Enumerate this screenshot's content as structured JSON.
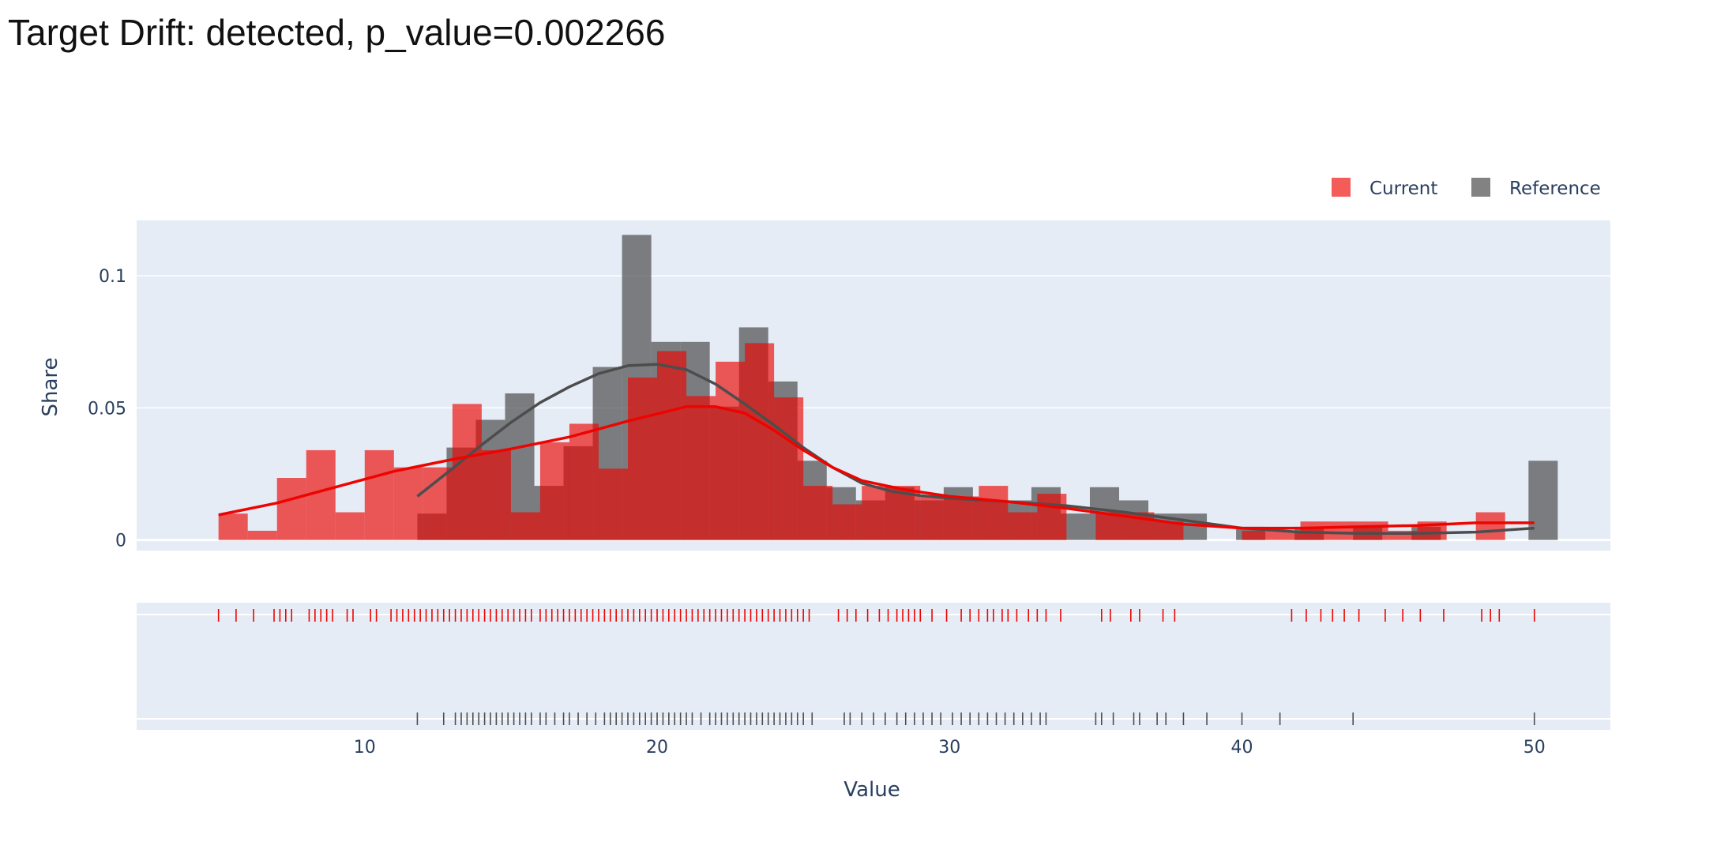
{
  "title": "Target Drift: detected, p_value=0.002266",
  "colors": {
    "current": "#ed0400",
    "reference": "#4d4d4d",
    "plot_bg": "#e5ecf6",
    "grid": "#ffffff",
    "text": "#2a3f5f"
  },
  "chart_data": {
    "type": "histogram",
    "xlabel": "Value",
    "ylabel": "Share",
    "xlim": [
      2.2,
      52.6
    ],
    "ylim": [
      -0.004,
      0.121
    ],
    "x_ticks": [
      10,
      20,
      30,
      40,
      50
    ],
    "y_ticks": [
      0,
      0.05,
      0.1
    ],
    "y_tick_labels": [
      "0",
      "0.05",
      "0.1"
    ],
    "legend": {
      "position": "top-right",
      "entries": [
        "Current",
        "Reference"
      ]
    },
    "series": [
      {
        "name": "Current",
        "bins": [
          [
            5.0,
            6.0,
            0.01
          ],
          [
            6.0,
            7.0,
            0.0035
          ],
          [
            7.0,
            8.0,
            0.0235
          ],
          [
            8.0,
            9.0,
            0.034
          ],
          [
            9.0,
            10.0,
            0.0105
          ],
          [
            10.0,
            11.0,
            0.034
          ],
          [
            11.0,
            12.0,
            0.0275
          ],
          [
            12.0,
            13.0,
            0.0275
          ],
          [
            13.0,
            14.0,
            0.0515
          ],
          [
            14.0,
            15.0,
            0.034
          ],
          [
            15.0,
            16.0,
            0.0105
          ],
          [
            16.0,
            17.0,
            0.037
          ],
          [
            17.0,
            18.0,
            0.044
          ],
          [
            18.0,
            19.0,
            0.027
          ],
          [
            19.0,
            20.0,
            0.0615
          ],
          [
            20.0,
            21.0,
            0.0715
          ],
          [
            21.0,
            22.0,
            0.0545
          ],
          [
            22.0,
            23.0,
            0.0675
          ],
          [
            23.0,
            24.0,
            0.0745
          ],
          [
            24.0,
            25.0,
            0.054
          ],
          [
            25.0,
            26.0,
            0.0205
          ],
          [
            26.0,
            27.0,
            0.0135
          ],
          [
            27.0,
            28.0,
            0.0205
          ],
          [
            28.0,
            29.0,
            0.0205
          ],
          [
            29.0,
            30.0,
            0.017
          ],
          [
            30.0,
            31.0,
            0.0165
          ],
          [
            31.0,
            32.0,
            0.0205
          ],
          [
            32.0,
            33.0,
            0.0105
          ],
          [
            33.0,
            34.0,
            0.0175
          ],
          [
            35.0,
            36.0,
            0.0105
          ],
          [
            36.0,
            37.0,
            0.0105
          ],
          [
            37.0,
            38.0,
            0.007
          ],
          [
            40.0,
            41.0,
            0.0035
          ],
          [
            41.0,
            42.0,
            0.0035
          ],
          [
            42.0,
            43.0,
            0.007
          ],
          [
            43.0,
            44.0,
            0.007
          ],
          [
            44.0,
            45.0,
            0.007
          ],
          [
            45.0,
            46.0,
            0.0035
          ],
          [
            46.0,
            47.0,
            0.007
          ],
          [
            48.0,
            49.0,
            0.0105
          ],
          [
            49.0,
            50.0,
            0.0
          ]
        ],
        "kde": [
          [
            5.0,
            0.0095
          ],
          [
            7.0,
            0.014
          ],
          [
            9.0,
            0.02
          ],
          [
            11.0,
            0.026
          ],
          [
            13.0,
            0.0305
          ],
          [
            15.0,
            0.0345
          ],
          [
            17.0,
            0.039
          ],
          [
            19.0,
            0.045
          ],
          [
            21.0,
            0.0505
          ],
          [
            22.0,
            0.0505
          ],
          [
            23.0,
            0.048
          ],
          [
            24.0,
            0.0415
          ],
          [
            25.0,
            0.034
          ],
          [
            26.0,
            0.0275
          ],
          [
            27.0,
            0.0225
          ],
          [
            28.5,
            0.019
          ],
          [
            30.0,
            0.0165
          ],
          [
            32.0,
            0.0145
          ],
          [
            34.0,
            0.012
          ],
          [
            36.0,
            0.009
          ],
          [
            38.0,
            0.006
          ],
          [
            40.0,
            0.0045
          ],
          [
            42.0,
            0.0045
          ],
          [
            44.0,
            0.005
          ],
          [
            46.0,
            0.0055
          ],
          [
            48.0,
            0.0065
          ],
          [
            50.0,
            0.0065
          ]
        ],
        "rug": [
          5.0,
          5.6,
          6.2,
          6.9,
          7.1,
          7.3,
          7.5,
          8.1,
          8.3,
          8.5,
          8.7,
          8.9,
          9.4,
          9.6,
          10.2,
          10.4,
          10.9,
          11.1,
          11.3,
          11.5,
          11.7,
          11.9,
          12.1,
          12.3,
          12.5,
          12.7,
          12.9,
          13.1,
          13.3,
          13.5,
          13.7,
          13.9,
          14.1,
          14.3,
          14.5,
          14.7,
          14.9,
          15.1,
          15.3,
          15.5,
          15.7,
          16.0,
          16.2,
          16.4,
          16.6,
          16.8,
          17.0,
          17.2,
          17.4,
          17.6,
          17.8,
          18.0,
          18.2,
          18.4,
          18.6,
          18.8,
          19.0,
          19.2,
          19.4,
          19.6,
          19.8,
          20.0,
          20.2,
          20.4,
          20.6,
          20.8,
          21.0,
          21.2,
          21.4,
          21.6,
          21.8,
          22.0,
          22.2,
          22.4,
          22.6,
          22.8,
          23.0,
          23.2,
          23.4,
          23.6,
          23.8,
          24.0,
          24.2,
          24.4,
          24.6,
          24.8,
          25.0,
          25.2,
          26.2,
          26.5,
          26.8,
          27.2,
          27.6,
          27.9,
          28.2,
          28.4,
          28.6,
          28.8,
          29.0,
          29.4,
          29.9,
          30.4,
          30.7,
          31.0,
          31.3,
          31.5,
          31.8,
          32.0,
          32.3,
          32.7,
          33.0,
          33.3,
          33.8,
          35.2,
          35.5,
          36.2,
          36.5,
          37.3,
          37.7,
          41.7,
          42.2,
          42.7,
          43.1,
          43.5,
          44.0,
          44.9,
          45.5,
          46.1,
          46.9,
          48.2,
          48.5,
          48.8,
          50.0
        ]
      },
      {
        "name": "Reference",
        "bins": [
          [
            11.8,
            12.8,
            0.01
          ],
          [
            12.8,
            13.8,
            0.035
          ],
          [
            13.8,
            14.8,
            0.0455
          ],
          [
            14.8,
            15.8,
            0.0555
          ],
          [
            15.8,
            16.8,
            0.0205
          ],
          [
            16.8,
            17.8,
            0.0355
          ],
          [
            17.8,
            18.8,
            0.0655
          ],
          [
            18.8,
            19.8,
            0.1155
          ],
          [
            19.8,
            20.8,
            0.075
          ],
          [
            20.8,
            21.8,
            0.075
          ],
          [
            21.8,
            22.8,
            0.0505
          ],
          [
            22.8,
            23.8,
            0.0805
          ],
          [
            23.8,
            24.8,
            0.06
          ],
          [
            24.8,
            25.8,
            0.03
          ],
          [
            25.8,
            26.8,
            0.02
          ],
          [
            26.8,
            27.8,
            0.015
          ],
          [
            27.8,
            28.8,
            0.02
          ],
          [
            28.8,
            29.8,
            0.015
          ],
          [
            29.8,
            30.8,
            0.02
          ],
          [
            30.8,
            31.8,
            0.015
          ],
          [
            31.8,
            32.8,
            0.015
          ],
          [
            32.8,
            33.8,
            0.02
          ],
          [
            33.8,
            34.8,
            0.01
          ],
          [
            34.8,
            35.8,
            0.02
          ],
          [
            35.8,
            36.8,
            0.015
          ],
          [
            36.8,
            37.8,
            0.01
          ],
          [
            37.8,
            38.8,
            0.01
          ],
          [
            39.8,
            40.8,
            0.005
          ],
          [
            41.8,
            42.8,
            0.005
          ],
          [
            43.8,
            44.8,
            0.005
          ],
          [
            45.8,
            46.8,
            0.005
          ],
          [
            49.8,
            50.8,
            0.03
          ]
        ],
        "kde": [
          [
            11.8,
            0.0165
          ],
          [
            13.0,
            0.027
          ],
          [
            14.0,
            0.036
          ],
          [
            15.0,
            0.0445
          ],
          [
            16.0,
            0.052
          ],
          [
            17.0,
            0.058
          ],
          [
            18.0,
            0.063
          ],
          [
            19.0,
            0.066
          ],
          [
            20.0,
            0.0665
          ],
          [
            21.0,
            0.0645
          ],
          [
            22.0,
            0.059
          ],
          [
            23.0,
            0.0515
          ],
          [
            24.0,
            0.0435
          ],
          [
            25.0,
            0.035
          ],
          [
            26.0,
            0.0275
          ],
          [
            27.0,
            0.0215
          ],
          [
            28.0,
            0.0185
          ],
          [
            29.0,
            0.0168
          ],
          [
            30.0,
            0.0158
          ],
          [
            32.0,
            0.0145
          ],
          [
            34.0,
            0.013
          ],
          [
            36.0,
            0.0105
          ],
          [
            38.0,
            0.0075
          ],
          [
            40.0,
            0.0045
          ],
          [
            42.0,
            0.003
          ],
          [
            44.0,
            0.0025
          ],
          [
            46.0,
            0.0025
          ],
          [
            48.0,
            0.003
          ],
          [
            50.0,
            0.0045
          ]
        ],
        "rug": [
          11.8,
          12.7,
          13.1,
          13.3,
          13.5,
          13.7,
          13.9,
          14.1,
          14.3,
          14.5,
          14.7,
          14.9,
          15.1,
          15.3,
          15.5,
          15.7,
          16.0,
          16.2,
          16.5,
          16.8,
          17.0,
          17.3,
          17.6,
          17.9,
          18.2,
          18.4,
          18.6,
          18.8,
          19.0,
          19.2,
          19.4,
          19.6,
          19.8,
          20.0,
          20.2,
          20.4,
          20.6,
          20.8,
          21.0,
          21.2,
          21.5,
          21.8,
          22.0,
          22.2,
          22.4,
          22.6,
          22.8,
          23.0,
          23.2,
          23.4,
          23.6,
          23.8,
          24.0,
          24.2,
          24.4,
          24.6,
          24.8,
          25.0,
          25.3,
          26.4,
          26.6,
          27.0,
          27.4,
          27.8,
          28.2,
          28.5,
          28.8,
          29.1,
          29.4,
          29.7,
          30.1,
          30.4,
          30.7,
          31.0,
          31.3,
          31.6,
          31.9,
          32.2,
          32.5,
          32.8,
          33.1,
          33.3,
          35.0,
          35.2,
          35.6,
          36.3,
          36.5,
          37.1,
          37.4,
          38.0,
          38.8,
          40.0,
          41.3,
          43.8,
          50.0
        ]
      }
    ]
  }
}
